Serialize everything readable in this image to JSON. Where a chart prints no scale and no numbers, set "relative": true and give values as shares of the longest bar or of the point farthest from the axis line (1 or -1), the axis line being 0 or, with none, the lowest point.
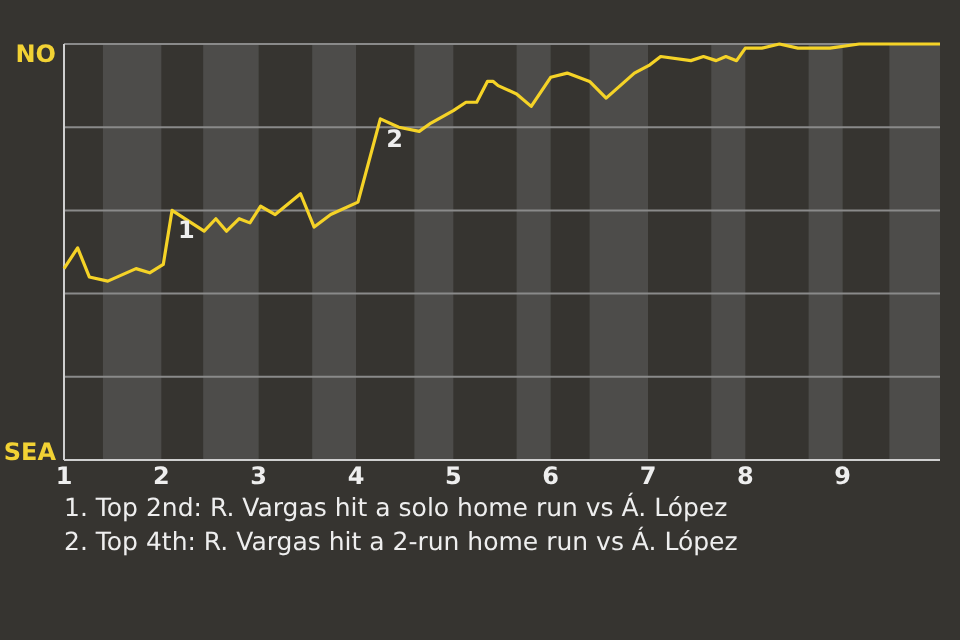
{
  "chart_data": {
    "type": "line",
    "relative": true,
    "x": [
      1.0,
      1.14,
      1.26,
      1.45,
      1.74,
      1.88,
      2.02,
      2.11,
      2.44,
      2.56,
      2.67,
      2.8,
      2.91,
      3.02,
      3.17,
      3.43,
      3.57,
      3.74,
      4.02,
      4.25,
      4.44,
      4.65,
      4.77,
      5.0,
      5.13,
      5.24,
      5.35,
      5.41,
      5.46,
      5.65,
      5.8,
      6.0,
      6.17,
      6.4,
      6.57,
      6.86,
      7.02,
      7.13,
      7.44,
      7.57,
      7.7,
      7.8,
      7.91,
      8.0,
      8.17,
      8.35,
      8.54,
      8.72,
      8.87,
      9.17,
      10.0
    ],
    "series": [
      {
        "color": "#f5d327",
        "values": [
          0.46,
          0.51,
          0.44,
          0.43,
          0.46,
          0.45,
          0.47,
          0.6,
          0.55,
          0.58,
          0.55,
          0.58,
          0.57,
          0.61,
          0.59,
          0.64,
          0.56,
          0.59,
          0.62,
          0.82,
          0.8,
          0.79,
          0.81,
          0.84,
          0.86,
          0.86,
          0.91,
          0.91,
          0.9,
          0.88,
          0.85,
          0.92,
          0.93,
          0.91,
          0.87,
          0.93,
          0.95,
          0.97,
          0.96,
          0.97,
          0.96,
          0.97,
          0.96,
          0.99,
          0.99,
          1.0,
          0.99,
          0.99,
          0.99,
          1.0,
          1.0
        ]
      }
    ],
    "xlim": [
      1,
      10
    ],
    "xticks": [
      1,
      2,
      3,
      4,
      5,
      6,
      7,
      8,
      9
    ],
    "grid": "y",
    "marker": "none",
    "line_style": "solid",
    "bands": [
      {
        "axis": "x",
        "from": 1.4,
        "to": 2,
        "color": "#4d4c4a"
      },
      {
        "axis": "x",
        "from": 2.43,
        "to": 3,
        "color": "#4d4c4a"
      },
      {
        "axis": "x",
        "from": 3.55,
        "to": 4,
        "color": "#4d4c4a"
      },
      {
        "axis": "x",
        "from": 4.6,
        "to": 5,
        "color": "#4d4c4a"
      },
      {
        "axis": "x",
        "from": 5.65,
        "to": 6,
        "color": "#4d4c4a"
      },
      {
        "axis": "x",
        "from": 6.4,
        "to": 7,
        "color": "#4d4c4a"
      },
      {
        "axis": "x",
        "from": 7.65,
        "to": 8,
        "color": "#4d4c4a"
      },
      {
        "axis": "x",
        "from": 8.65,
        "to": 9,
        "color": "#4d4c4a"
      },
      {
        "axis": "x",
        "from": 9.48,
        "to": 10,
        "color": "#4d4c4a"
      }
    ],
    "annotations": [
      "NO",
      "SEA",
      {
        "text": "1",
        "x": 2.11,
        "y": 0.6
      },
      {
        "text": "2",
        "x": 4.25,
        "y": 0.82
      },
      "1. Top 2nd: R. Vargas hit a solo home run vs Á. López",
      "2. Top 4th: R. Vargas hit a 2-run home run vs Á. López"
    ]
  }
}
